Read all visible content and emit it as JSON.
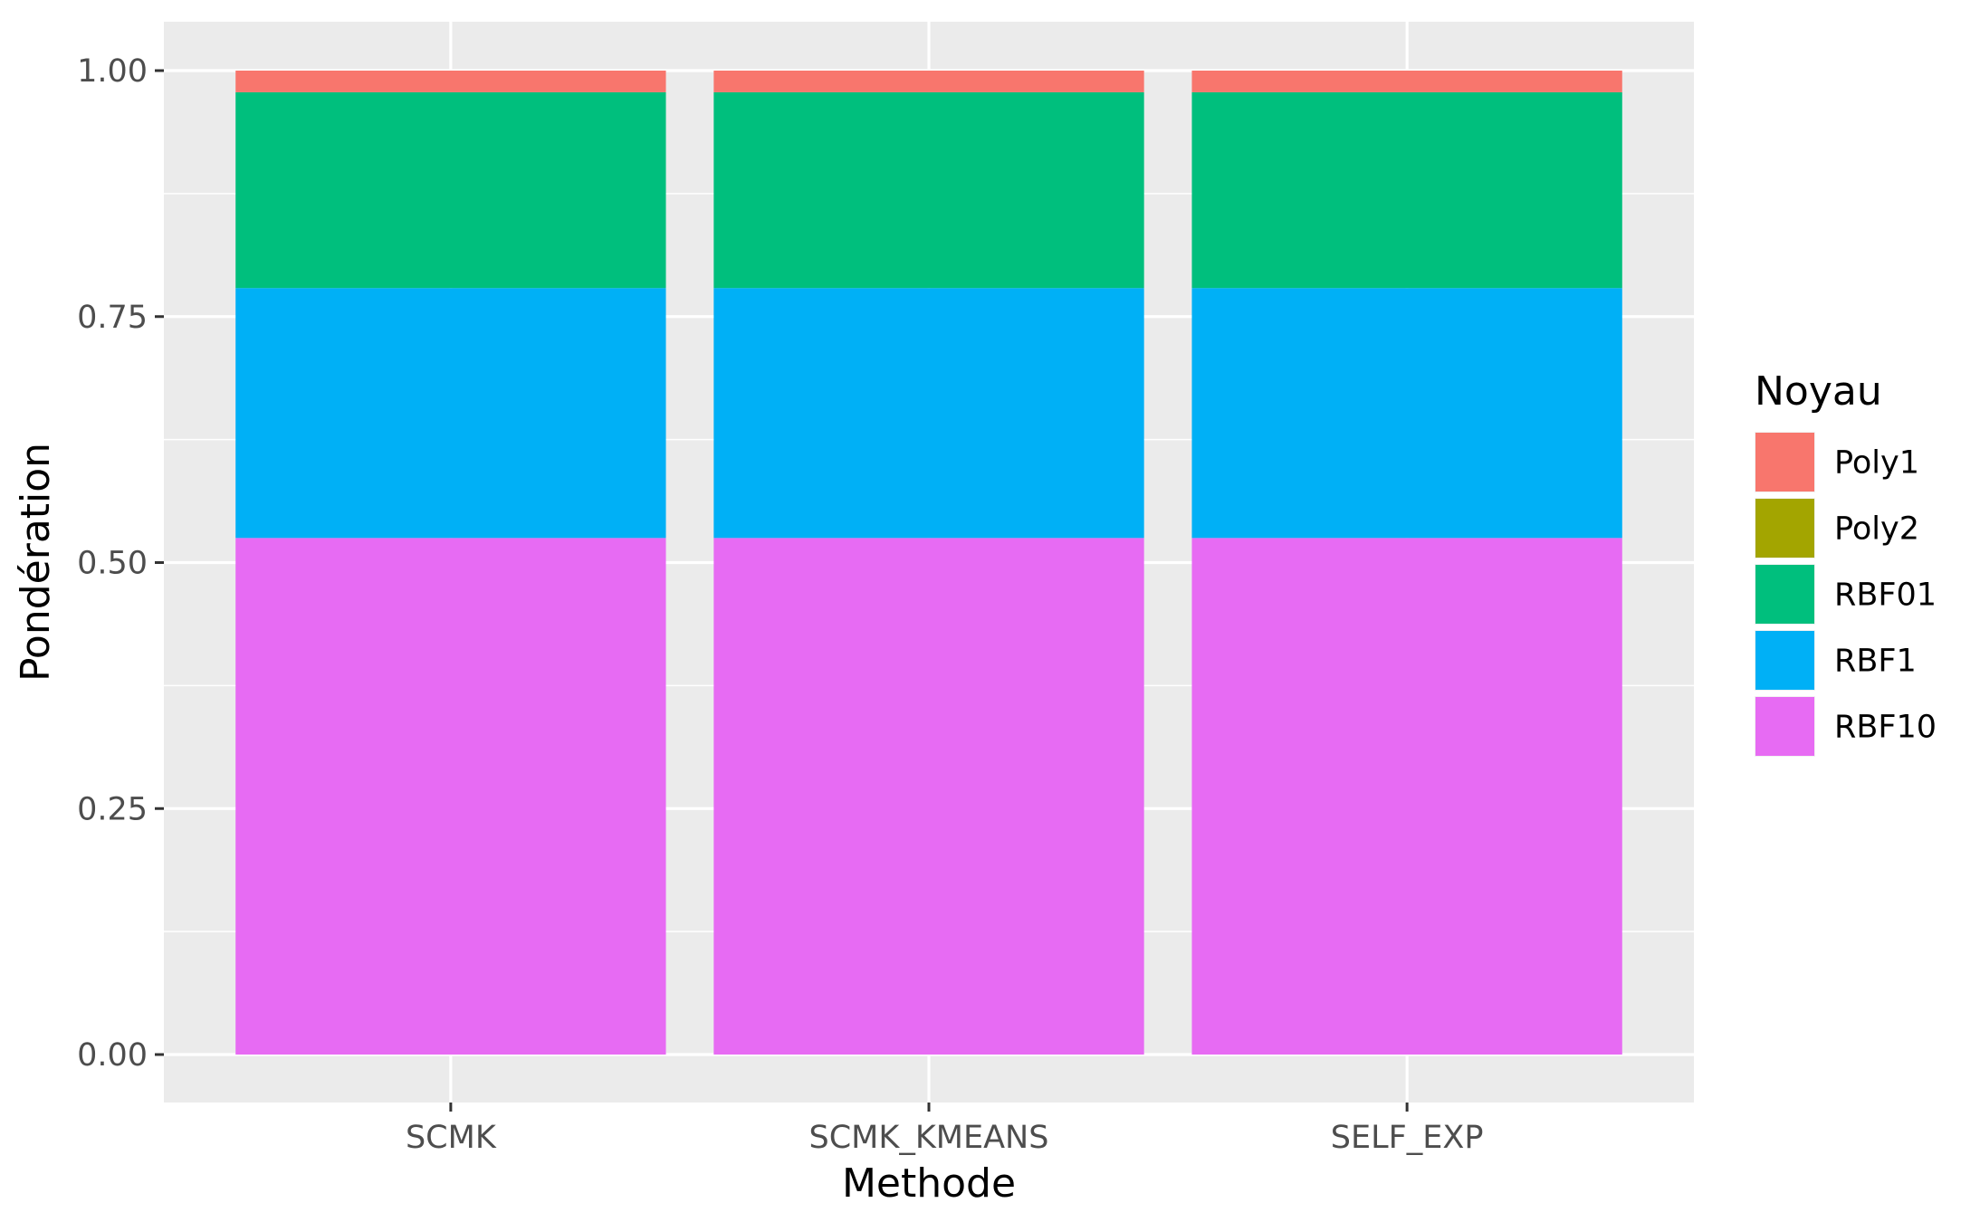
{
  "chart_data": {
    "type": "bar",
    "stacked": true,
    "xlabel": "Methode",
    "ylabel": "Pondération",
    "ylim": [
      0,
      1.0
    ],
    "yticks": [
      "0.00",
      "0.25",
      "0.50",
      "0.75",
      "1.00"
    ],
    "categories": [
      "SCMK",
      "SCMK_KMEANS",
      "SELF_EXP"
    ],
    "legend_title": "Noyau",
    "legend_position": "right",
    "grid": true,
    "series": [
      {
        "name": "Poly1",
        "color": "#F8766D",
        "values": [
          0.022,
          0.022,
          0.022
        ]
      },
      {
        "name": "Poly2",
        "color": "#A3A500",
        "values": [
          0.0,
          0.0,
          0.0
        ]
      },
      {
        "name": "RBF01",
        "color": "#00BF7D",
        "values": [
          0.199,
          0.199,
          0.199
        ]
      },
      {
        "name": "RBF1",
        "color": "#00B0F6",
        "values": [
          0.254,
          0.254,
          0.254
        ]
      },
      {
        "name": "RBF10",
        "color": "#E76BF3",
        "values": [
          0.525,
          0.525,
          0.525
        ]
      }
    ],
    "panel_background": "#EBEBEB",
    "gridline_color": "#FFFFFF"
  }
}
